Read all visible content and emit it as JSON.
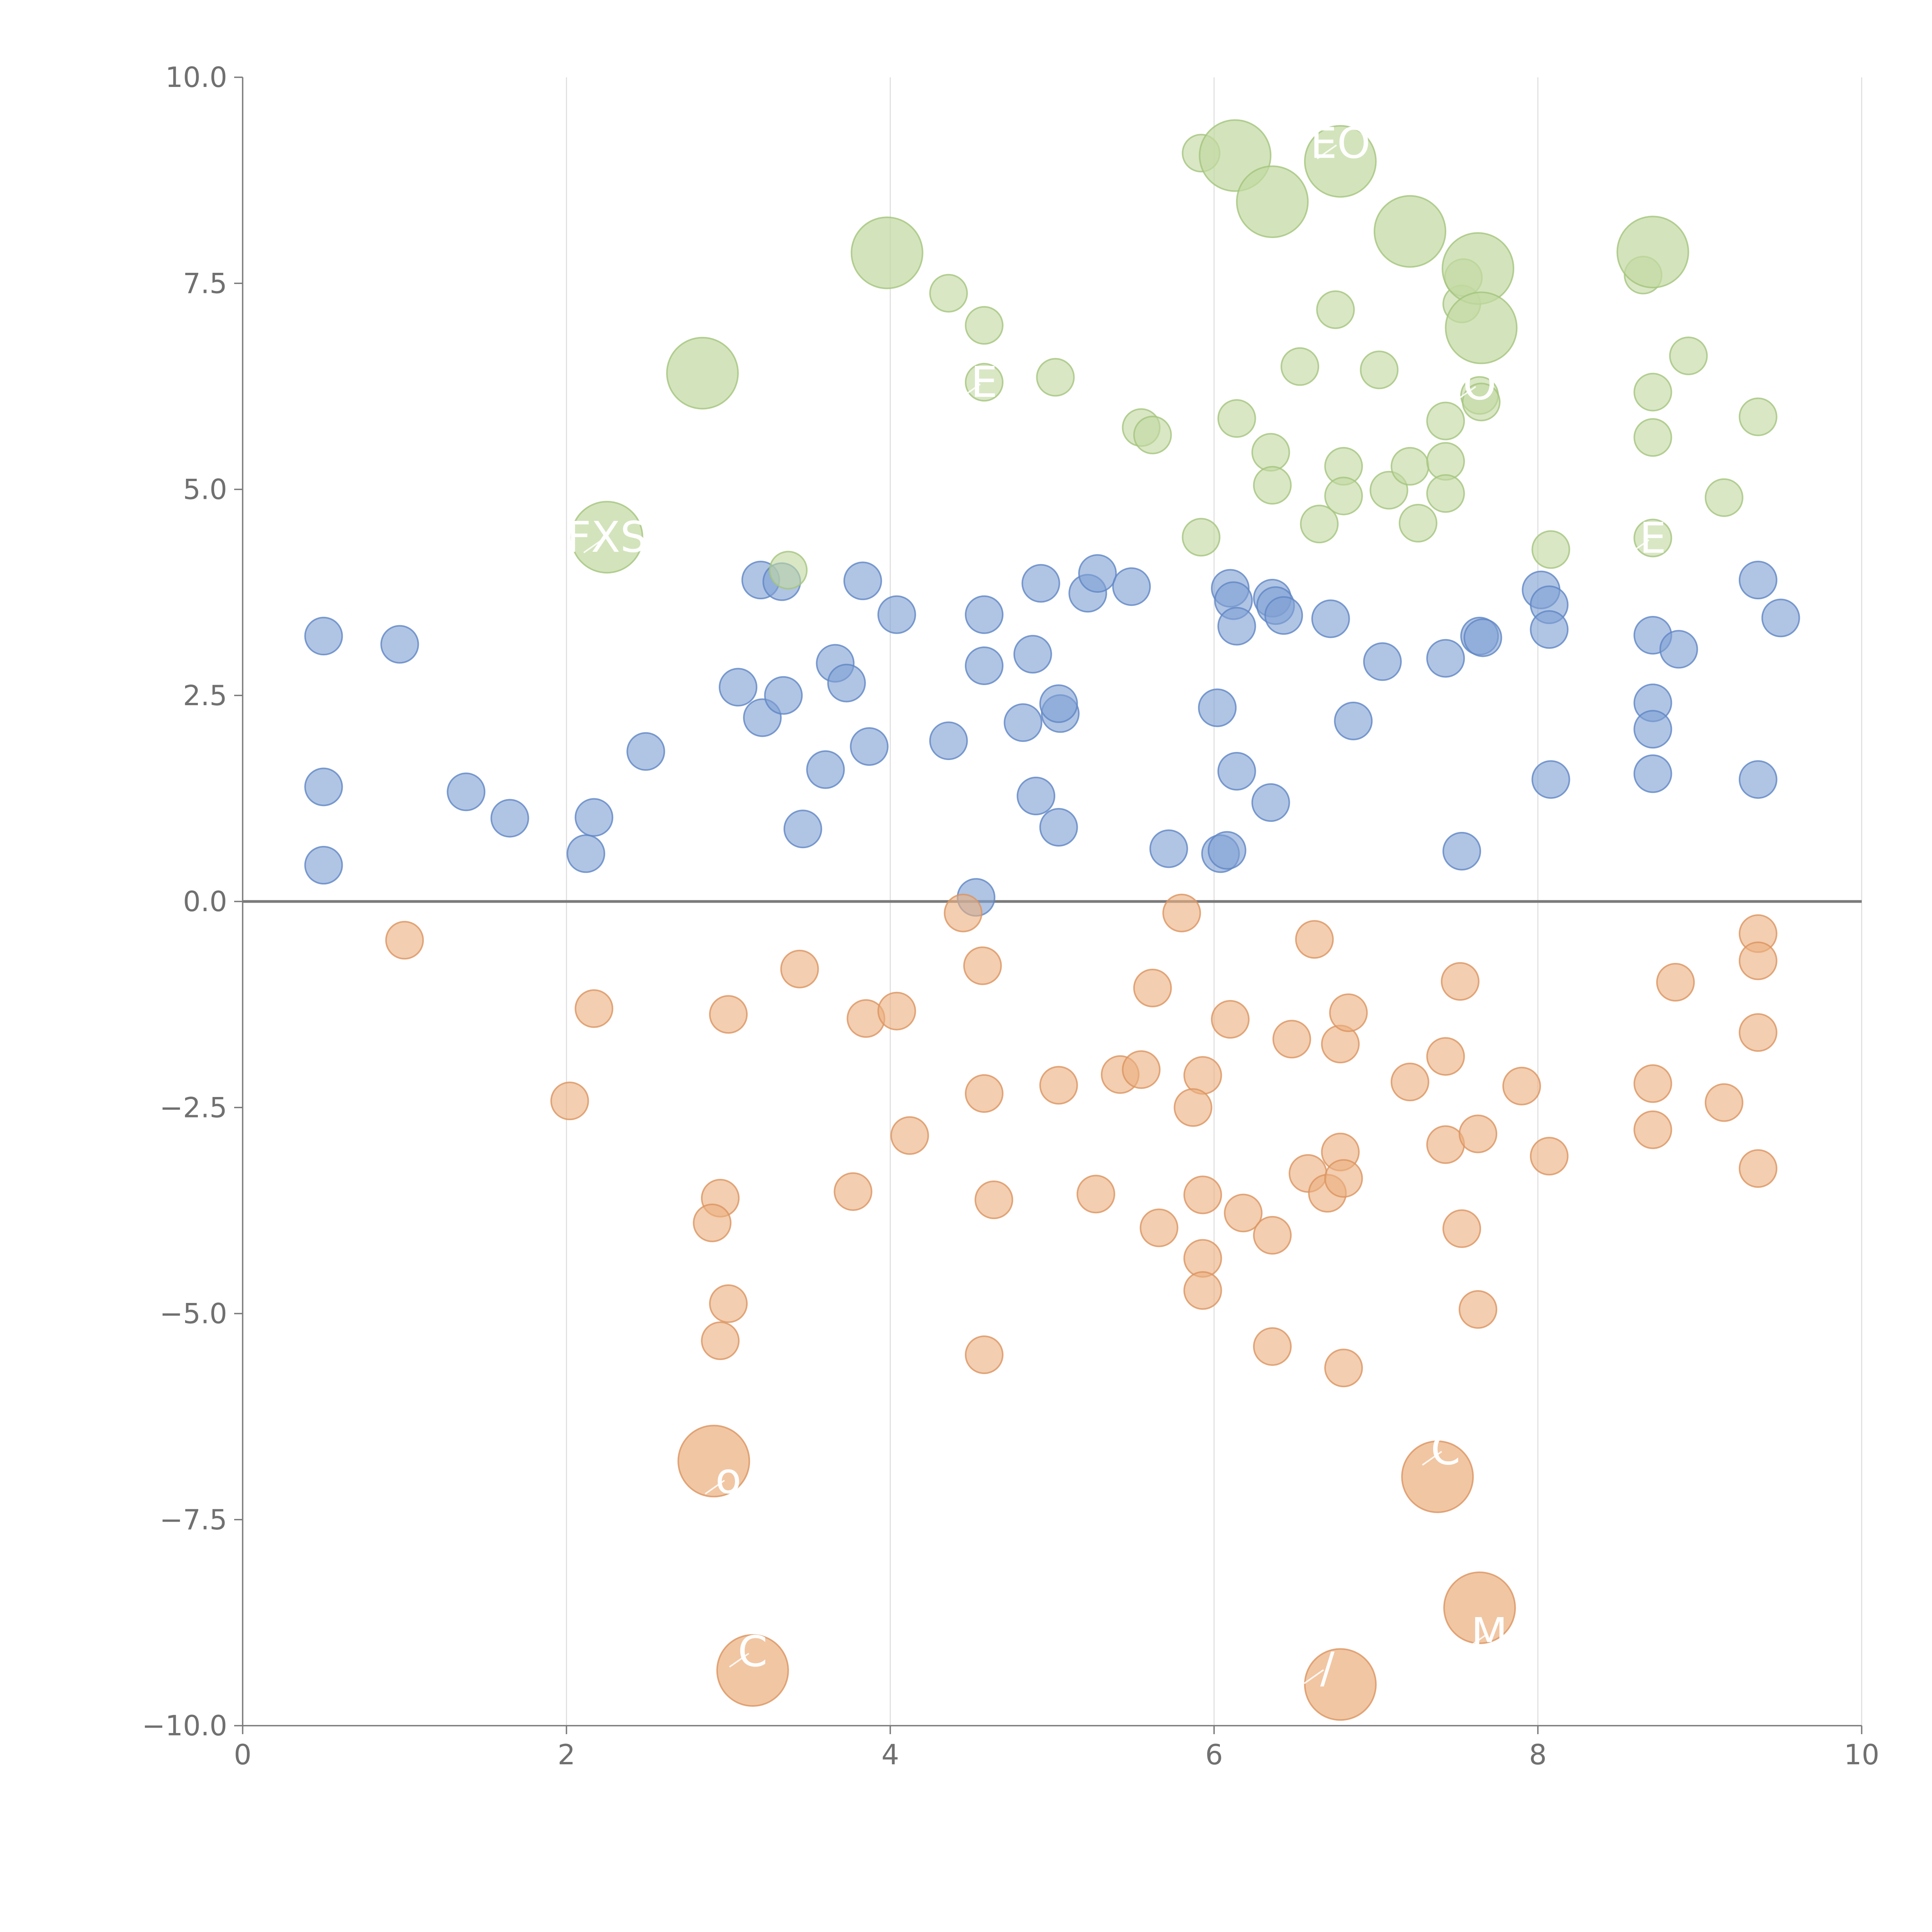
{
  "chart_data": {
    "type": "scatter",
    "title": "",
    "xlabel": "",
    "ylabel": "",
    "xlim": [
      0,
      10
    ],
    "ylim": [
      -10,
      10
    ],
    "x_ticks": [
      0,
      2,
      4,
      6,
      8,
      10
    ],
    "x_tick_labels": [
      "0",
      "2",
      "4",
      "6",
      "8",
      "10"
    ],
    "y_ticks": [
      -10,
      -7.5,
      -5,
      -2.5,
      0,
      2.5,
      5,
      7.5,
      10
    ],
    "y_tick_labels": [
      "−10.0",
      "−7.5",
      "−5.0",
      "−2.5",
      "0.0",
      "2.5",
      "5.0",
      "7.5",
      "10.0"
    ],
    "vertical_grid": true,
    "zero_line": 0,
    "series": [
      {
        "name": "blue",
        "color": "#7fa0d4",
        "stroke": "#5f86c4",
        "points": [
          [
            0.5,
            3.22
          ],
          [
            0.97,
            3.12
          ],
          [
            0.5,
            1.39
          ],
          [
            1.38,
            1.33
          ],
          [
            1.65,
            1.01
          ],
          [
            0.5,
            0.44
          ],
          [
            2.12,
            0.58
          ],
          [
            2.17,
            1.02
          ],
          [
            2.49,
            1.82
          ],
          [
            3.06,
            2.6
          ],
          [
            3.21,
            2.23
          ],
          [
            3.34,
            2.5
          ],
          [
            3.2,
            3.9
          ],
          [
            3.33,
            3.88
          ],
          [
            3.6,
            1.6
          ],
          [
            3.46,
            0.88
          ],
          [
            3.66,
            2.89
          ],
          [
            3.73,
            2.65
          ],
          [
            3.83,
            3.89
          ],
          [
            3.87,
            1.88
          ],
          [
            4.04,
            3.48
          ],
          [
            4.36,
            1.95
          ],
          [
            4.58,
            3.48
          ],
          [
            4.58,
            2.86
          ],
          [
            4.53,
            0.05
          ],
          [
            4.82,
            2.17
          ],
          [
            4.88,
            3.0
          ],
          [
            4.93,
            3.86
          ],
          [
            4.9,
            1.28
          ],
          [
            5.05,
            2.28
          ],
          [
            5.04,
            2.4
          ],
          [
            5.04,
            0.9
          ],
          [
            5.22,
            3.74
          ],
          [
            5.28,
            3.98
          ],
          [
            5.49,
            3.82
          ],
          [
            5.72,
            0.64
          ],
          [
            6.02,
            2.35
          ],
          [
            6.04,
            0.58
          ],
          [
            6.1,
            3.8
          ],
          [
            6.12,
            3.65
          ],
          [
            6.14,
            3.34
          ],
          [
            6.14,
            1.58
          ],
          [
            6.36,
            3.68
          ],
          [
            6.38,
            3.59
          ],
          [
            6.43,
            3.47
          ],
          [
            6.35,
            1.2
          ],
          [
            6.08,
            0.62
          ],
          [
            6.72,
            3.43
          ],
          [
            6.86,
            2.19
          ],
          [
            7.04,
            2.91
          ],
          [
            7.43,
            2.95
          ],
          [
            7.53,
            0.61
          ],
          [
            7.64,
            3.22
          ],
          [
            7.66,
            3.2
          ],
          [
            8.02,
            3.78
          ],
          [
            8.07,
            3.6
          ],
          [
            8.07,
            3.3
          ],
          [
            8.08,
            1.48
          ],
          [
            8.71,
            3.23
          ],
          [
            8.71,
            2.41
          ],
          [
            8.71,
            2.09
          ],
          [
            8.71,
            1.55
          ],
          [
            8.87,
            3.06
          ],
          [
            9.36,
            3.9
          ],
          [
            9.36,
            1.48
          ],
          [
            9.5,
            3.44
          ]
        ]
      },
      {
        "name": "orange",
        "color": "#ebb080",
        "stroke": "#db9460",
        "points": [
          [
            1.0,
            -0.47
          ],
          [
            2.17,
            -1.3
          ],
          [
            2.02,
            -2.42
          ],
          [
            3.0,
            -1.37
          ],
          [
            2.95,
            -3.6
          ],
          [
            2.9,
            -3.9
          ],
          [
            3.0,
            -4.88
          ],
          [
            2.95,
            -5.33
          ],
          [
            3.44,
            -0.82
          ],
          [
            3.77,
            -3.52
          ],
          [
            3.85,
            -1.42
          ],
          [
            4.04,
            -1.33
          ],
          [
            4.12,
            -2.84
          ],
          [
            4.45,
            -0.14
          ],
          [
            4.57,
            -0.78
          ],
          [
            4.58,
            -2.33
          ],
          [
            4.64,
            -3.62
          ],
          [
            4.58,
            -5.5
          ],
          [
            5.04,
            -2.23
          ],
          [
            5.27,
            -3.55
          ],
          [
            5.42,
            -2.1
          ],
          [
            5.55,
            -2.04
          ],
          [
            5.62,
            -1.05
          ],
          [
            5.8,
            -0.14
          ],
          [
            5.93,
            -2.11
          ],
          [
            5.87,
            -2.5
          ],
          [
            5.93,
            -3.56
          ],
          [
            5.66,
            -3.96
          ],
          [
            5.93,
            -4.33
          ],
          [
            5.93,
            -4.72
          ],
          [
            6.18,
            -3.78
          ],
          [
            6.1,
            -1.43
          ],
          [
            6.48,
            -1.67
          ],
          [
            6.62,
            -0.46
          ],
          [
            6.36,
            -4.05
          ],
          [
            6.36,
            -5.4
          ],
          [
            6.58,
            -3.3
          ],
          [
            6.7,
            -3.54
          ],
          [
            6.78,
            -1.73
          ],
          [
            6.78,
            -3.04
          ],
          [
            6.8,
            -3.36
          ],
          [
            6.8,
            -5.66
          ],
          [
            6.83,
            -1.35
          ],
          [
            7.21,
            -2.19
          ],
          [
            7.43,
            -1.88
          ],
          [
            7.43,
            -2.95
          ],
          [
            7.52,
            -0.97
          ],
          [
            7.53,
            -3.97
          ],
          [
            7.63,
            -2.82
          ],
          [
            7.63,
            -4.95
          ],
          [
            7.9,
            -2.24
          ],
          [
            8.07,
            -3.09
          ],
          [
            8.71,
            -2.21
          ],
          [
            8.71,
            -2.77
          ],
          [
            8.85,
            -0.98
          ],
          [
            9.15,
            -2.44
          ],
          [
            9.36,
            -0.39
          ],
          [
            9.36,
            -0.72
          ],
          [
            9.36,
            -1.59
          ],
          [
            9.36,
            -3.24
          ]
        ]
      },
      {
        "name": "green",
        "color": "#c2d9a2",
        "stroke": "#a4c47d",
        "points": [
          [
            3.37,
            4.02
          ],
          [
            4.36,
            7.38
          ],
          [
            4.58,
            6.99
          ],
          [
            4.58,
            6.3
          ],
          [
            5.02,
            6.36
          ],
          [
            5.55,
            5.75
          ],
          [
            5.62,
            5.66
          ],
          [
            5.92,
            9.08
          ],
          [
            5.92,
            4.42
          ],
          [
            6.14,
            5.86
          ],
          [
            6.35,
            5.45
          ],
          [
            6.36,
            5.05
          ],
          [
            6.53,
            6.49
          ],
          [
            6.65,
            4.58
          ],
          [
            6.75,
            7.18
          ],
          [
            6.8,
            5.28
          ],
          [
            6.8,
            4.92
          ],
          [
            7.02,
            6.45
          ],
          [
            7.08,
            4.99
          ],
          [
            7.21,
            5.28
          ],
          [
            7.26,
            4.59
          ],
          [
            7.43,
            5.83
          ],
          [
            7.43,
            5.34
          ],
          [
            7.43,
            4.95
          ],
          [
            7.53,
            7.25
          ],
          [
            7.64,
            6.14
          ],
          [
            7.65,
            6.06
          ],
          [
            7.54,
            7.57
          ],
          [
            8.08,
            4.27
          ],
          [
            8.65,
            7.6
          ],
          [
            8.71,
            6.18
          ],
          [
            8.71,
            5.63
          ],
          [
            8.71,
            4.41
          ],
          [
            8.93,
            6.62
          ],
          [
            9.15,
            4.9
          ],
          [
            9.36,
            5.88
          ]
        ]
      }
    ],
    "big_bubbles": [
      {
        "series": "green",
        "x": 2.84,
        "y": 6.41
      },
      {
        "series": "green",
        "x": 2.25,
        "y": 4.42
      },
      {
        "series": "green",
        "x": 3.98,
        "y": 7.87
      },
      {
        "series": "green",
        "x": 6.13,
        "y": 9.05
      },
      {
        "series": "green",
        "x": 6.36,
        "y": 8.49
      },
      {
        "series": "green",
        "x": 6.78,
        "y": 8.98
      },
      {
        "series": "green",
        "x": 7.21,
        "y": 8.13
      },
      {
        "series": "green",
        "x": 7.63,
        "y": 7.68
      },
      {
        "series": "green",
        "x": 7.65,
        "y": 6.96
      },
      {
        "series": "green",
        "x": 8.71,
        "y": 7.88
      },
      {
        "series": "orange",
        "x": 2.91,
        "y": -6.79
      },
      {
        "series": "orange",
        "x": 3.15,
        "y": -9.33
      },
      {
        "series": "orange",
        "x": 7.38,
        "y": -6.98
      },
      {
        "series": "orange",
        "x": 7.64,
        "y": -8.57
      },
      {
        "series": "orange",
        "x": 6.78,
        "y": -9.5
      }
    ],
    "annotations": [
      {
        "text": "FXS",
        "x": 2.25,
        "y": 4.42
      },
      {
        "text": "EO",
        "x": 6.78,
        "y": 9.2
      },
      {
        "text": "O",
        "x": 7.64,
        "y": 6.27
      },
      {
        "text": "E",
        "x": 4.58,
        "y": 6.3
      },
      {
        "text": "E",
        "x": 8.71,
        "y": 4.41
      },
      {
        "text": "o",
        "x": 3.0,
        "y": -7.0
      },
      {
        "text": "C",
        "x": 7.43,
        "y": -6.65
      },
      {
        "text": "C",
        "x": 3.15,
        "y": -9.1
      },
      {
        "text": "M",
        "x": 7.7,
        "y": -8.88
      },
      {
        "text": "/",
        "x": 6.7,
        "y": -9.3
      }
    ]
  }
}
